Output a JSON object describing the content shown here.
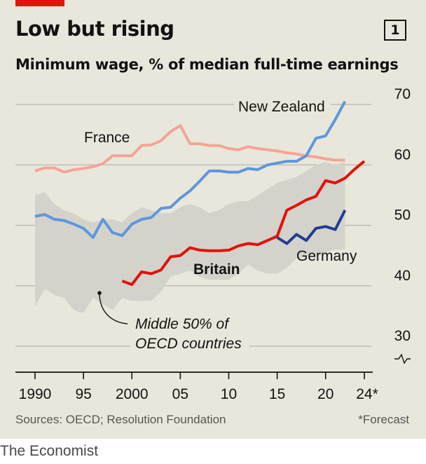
{
  "title": "Low but rising",
  "subtitle": "Minimum wage, % of median full-time earnings",
  "chart_number": "1",
  "source": "Sources: OECD; Resolution Foundation",
  "footnote": "*Forecast",
  "brand": "The Economist",
  "colors": {
    "background": "#e9e7dc",
    "accent_red": "#e3120b",
    "band": "#d4d3cb",
    "france": "#f4a595",
    "new_zealand": "#5e97dc",
    "britain": "#e3120b",
    "germany": "#233c91"
  },
  "chart_data": {
    "type": "line",
    "title": "Low but rising",
    "subtitle": "Minimum wage, % of median full-time earnings",
    "xlabel": "",
    "ylabel": "",
    "xlim": [
      1990,
      2024
    ],
    "ylim": [
      30,
      70
    ],
    "y_axis_position": "right",
    "grid": true,
    "x_ticks": [
      {
        "value": 1990,
        "label": "1990"
      },
      {
        "value": 1995,
        "label": "95"
      },
      {
        "value": 2000,
        "label": "2000"
      },
      {
        "value": 2005,
        "label": "05"
      },
      {
        "value": 2010,
        "label": "10"
      },
      {
        "value": 2015,
        "label": "15"
      },
      {
        "value": 2020,
        "label": "20"
      },
      {
        "value": 2024,
        "label": "24*"
      }
    ],
    "y_ticks": [
      {
        "value": 30,
        "label": "30"
      },
      {
        "value": 40,
        "label": "40"
      },
      {
        "value": 50,
        "label": "50"
      },
      {
        "value": 60,
        "label": "60"
      },
      {
        "value": 70,
        "label": "70"
      }
    ],
    "axis_break": true,
    "band": {
      "name": "Middle 50% of OECD countries",
      "x": [
        1990,
        1991,
        1992,
        1993,
        1994,
        1995,
        1996,
        1997,
        1998,
        1999,
        2000,
        2001,
        2002,
        2003,
        2004,
        2005,
        2006,
        2007,
        2008,
        2009,
        2010,
        2011,
        2012,
        2013,
        2014,
        2015,
        2016,
        2017,
        2018,
        2019,
        2020,
        2021,
        2022
      ],
      "low": [
        36.5,
        39.5,
        38.5,
        38.0,
        36.0,
        35.5,
        38.0,
        37.0,
        36.0,
        38.0,
        37.5,
        37.5,
        37.5,
        39.0,
        41.5,
        42.0,
        42.5,
        41.5,
        41.0,
        41.0,
        41.0,
        42.0,
        43.5,
        42.5,
        42.0,
        42.0,
        43.0,
        44.5,
        45.0,
        45.0,
        45.5,
        46.0,
        46.0
      ],
      "high": [
        55.0,
        55.5,
        53.5,
        52.5,
        52.0,
        51.0,
        50.5,
        51.0,
        51.0,
        50.5,
        52.0,
        53.0,
        52.5,
        52.0,
        52.0,
        53.0,
        53.5,
        53.0,
        52.0,
        52.5,
        53.5,
        54.0,
        54.0,
        55.0,
        56.0,
        57.0,
        57.5,
        58.0,
        59.0,
        60.0,
        60.5,
        60.0,
        60.5
      ]
    },
    "series": [
      {
        "name": "France",
        "x": [
          1990,
          1991,
          1992,
          1993,
          1994,
          1995,
          1996,
          1997,
          1998,
          1999,
          2000,
          2001,
          2002,
          2003,
          2004,
          2005,
          2006,
          2007,
          2008,
          2009,
          2010,
          2011,
          2012,
          2013,
          2014,
          2015,
          2016,
          2017,
          2018,
          2019,
          2020,
          2021,
          2022
        ],
        "values": [
          59.0,
          59.5,
          59.5,
          58.8,
          59.2,
          59.4,
          59.7,
          60.2,
          61.5,
          61.5,
          61.5,
          63.2,
          63.3,
          64.0,
          65.5,
          66.5,
          63.5,
          63.5,
          63.2,
          63.2,
          62.7,
          62.5,
          63.0,
          62.7,
          62.5,
          62.3,
          62.0,
          61.8,
          61.5,
          61.3,
          61.0,
          60.8,
          60.8
        ]
      },
      {
        "name": "New Zealand",
        "x": [
          1990,
          1991,
          1992,
          1993,
          1994,
          1995,
          1996,
          1997,
          1998,
          1999,
          2000,
          2001,
          2002,
          2003,
          2004,
          2005,
          2006,
          2007,
          2008,
          2009,
          2010,
          2011,
          2012,
          2013,
          2014,
          2015,
          2016,
          2017,
          2018,
          2019,
          2020,
          2021,
          2022
        ],
        "values": [
          51.5,
          51.8,
          51.0,
          50.8,
          50.2,
          49.5,
          48.0,
          51.0,
          48.8,
          48.3,
          50.2,
          51.0,
          51.3,
          52.8,
          53.0,
          54.5,
          55.7,
          57.3,
          59.0,
          59.0,
          58.8,
          58.8,
          59.4,
          59.2,
          60.0,
          60.3,
          60.6,
          60.6,
          61.5,
          64.4,
          64.8,
          67.5,
          70.5
        ]
      },
      {
        "name": "Britain",
        "x": [
          1999,
          2000,
          2001,
          2002,
          2003,
          2004,
          2005,
          2006,
          2007,
          2008,
          2009,
          2010,
          2011,
          2012,
          2013,
          2014,
          2015,
          2016,
          2017,
          2018,
          2019,
          2020,
          2021,
          2022,
          2023,
          2024
        ],
        "values": [
          40.8,
          40.2,
          42.3,
          42.0,
          42.6,
          44.8,
          45.0,
          46.3,
          45.9,
          45.8,
          45.8,
          45.9,
          46.6,
          47.0,
          46.8,
          47.5,
          48.2,
          52.5,
          53.3,
          54.2,
          54.8,
          57.4,
          57.0,
          57.8,
          59.3,
          60.6
        ]
      },
      {
        "name": "Germany",
        "x": [
          2015,
          2016,
          2017,
          2018,
          2019,
          2020,
          2021,
          2022
        ],
        "values": [
          48.0,
          47.0,
          48.5,
          47.5,
          49.5,
          49.8,
          49.3,
          52.5
        ]
      }
    ],
    "annotations": [
      {
        "text": "Middle 50% of",
        "target": "band"
      },
      {
        "text": "OECD countries",
        "target": "band"
      }
    ]
  }
}
